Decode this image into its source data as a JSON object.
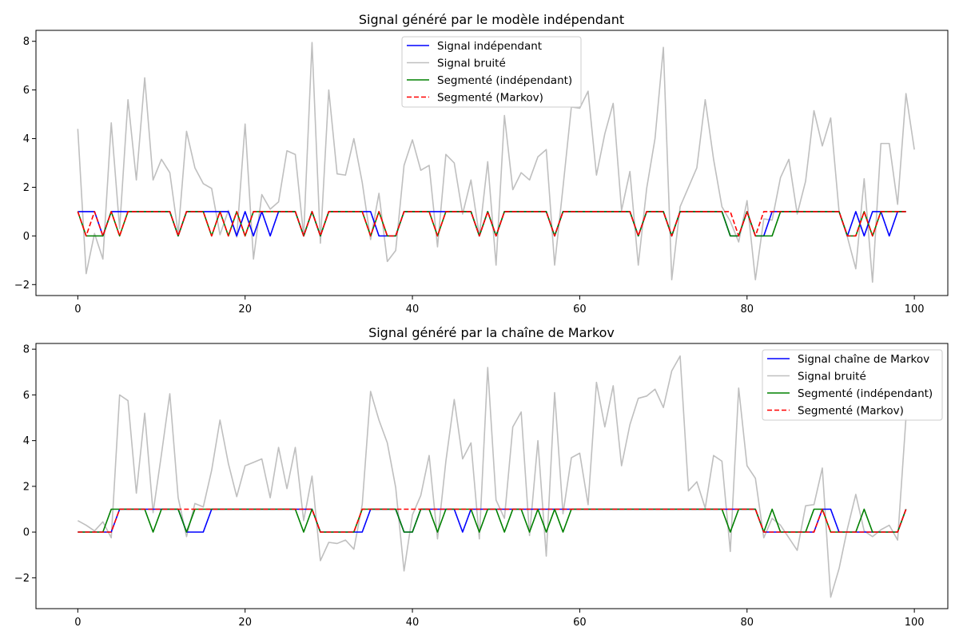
{
  "chart_data": [
    {
      "type": "line",
      "title": "Signal généré par le modèle indépendant",
      "xlim": [
        -5,
        104
      ],
      "ylim": [
        -2.45,
        8.45
      ],
      "xticks": [
        0,
        20,
        40,
        60,
        80,
        100
      ],
      "yticks": [
        -2,
        0,
        2,
        4,
        6,
        8
      ],
      "grid": false,
      "legend_position": "top-center",
      "series": [
        {
          "name": "Signal bruité",
          "color": "#bfbfbf",
          "dash": "solid",
          "values": [
            4.4,
            -1.55,
            0.1,
            -0.95,
            4.65,
            0.3,
            5.6,
            2.3,
            6.5,
            2.3,
            3.15,
            2.6,
            0.1,
            4.3,
            2.8,
            2.15,
            1.95,
            0.05,
            1.05,
            -0.05,
            4.6,
            -0.95,
            1.7,
            1.1,
            1.4,
            3.5,
            3.35,
            0.0,
            7.95,
            -0.3,
            6.0,
            2.55,
            2.5,
            4.0,
            2.2,
            -0.15,
            1.75,
            -1.05,
            -0.6,
            2.9,
            3.95,
            2.7,
            2.9,
            -0.45,
            3.35,
            3.0,
            0.9,
            2.3,
            0.0,
            3.05,
            -1.2,
            4.95,
            1.9,
            2.6,
            2.3,
            3.25,
            3.55,
            -1.2,
            2.0,
            5.3,
            5.25,
            5.95,
            2.5,
            4.2,
            5.45,
            1.05,
            2.65,
            -1.2,
            1.95,
            4.0,
            7.75,
            -1.8,
            1.2,
            2.0,
            2.8,
            5.6,
            3.15,
            1.2,
            0.6,
            -0.25,
            1.45,
            -1.8,
            0.7,
            0.65,
            2.4,
            3.15,
            0.9,
            2.25,
            5.15,
            3.7,
            4.85,
            1.0,
            -0.05,
            -1.35,
            2.35,
            -1.9,
            3.8,
            3.8,
            1.3,
            5.85,
            3.55
          ]
        },
        {
          "name": "Signal indépendant",
          "color": "#0000ff",
          "dash": "solid",
          "values": [
            1,
            1,
            1,
            0,
            1,
            1,
            1,
            1,
            1,
            1,
            1,
            1,
            0,
            1,
            1,
            1,
            1,
            1,
            1,
            0,
            1,
            0,
            1,
            0,
            1,
            1,
            1,
            0,
            1,
            0,
            1,
            1,
            1,
            1,
            1,
            1,
            0,
            0,
            0,
            1,
            1,
            1,
            1,
            1,
            1,
            1,
            1,
            1,
            0,
            1,
            0,
            1,
            1,
            1,
            1,
            1,
            1,
            0,
            1,
            1,
            1,
            1,
            1,
            1,
            1,
            1,
            1,
            0,
            1,
            1,
            1,
            0,
            1,
            1,
            1,
            1,
            1,
            1,
            0,
            0,
            1,
            0,
            0,
            1,
            1,
            1,
            1,
            1,
            1,
            1,
            1,
            1,
            0,
            1,
            0,
            1,
            1,
            0,
            1,
            1
          ]
        },
        {
          "name": "Segmenté (indépendant)",
          "color": "#008000",
          "dash": "solid",
          "values": [
            1,
            0,
            0,
            0,
            1,
            0,
            1,
            1,
            1,
            1,
            1,
            1,
            0,
            1,
            1,
            1,
            0,
            1,
            0,
            1,
            0,
            1,
            1,
            1,
            1,
            1,
            1,
            0,
            1,
            0,
            1,
            1,
            1,
            1,
            1,
            0,
            1,
            0,
            0,
            1,
            1,
            1,
            1,
            0,
            1,
            1,
            1,
            1,
            0,
            1,
            0,
            1,
            1,
            1,
            1,
            1,
            1,
            0,
            1,
            1,
            1,
            1,
            1,
            1,
            1,
            1,
            1,
            0,
            1,
            1,
            1,
            0,
            1,
            1,
            1,
            1,
            1,
            1,
            0,
            0,
            1,
            0,
            0,
            0,
            1,
            1,
            1,
            1,
            1,
            1,
            1,
            1,
            0,
            0,
            1,
            0,
            1,
            1,
            1,
            1
          ]
        },
        {
          "name": "Segmenté (Markov)",
          "color": "#ff0000",
          "dash": "dashed",
          "values": [
            1,
            0,
            1,
            0,
            1,
            0,
            1,
            1,
            1,
            1,
            1,
            1,
            0,
            1,
            1,
            1,
            0,
            1,
            0,
            1,
            0,
            1,
            1,
            1,
            1,
            1,
            1,
            0,
            1,
            0,
            1,
            1,
            1,
            1,
            1,
            0,
            1,
            0,
            0,
            1,
            1,
            1,
            1,
            0,
            1,
            1,
            1,
            1,
            0,
            1,
            0,
            1,
            1,
            1,
            1,
            1,
            1,
            0,
            1,
            1,
            1,
            1,
            1,
            1,
            1,
            1,
            1,
            0,
            1,
            1,
            1,
            0,
            1,
            1,
            1,
            1,
            1,
            1,
            1,
            0,
            1,
            0,
            1,
            1,
            1,
            1,
            1,
            1,
            1,
            1,
            1,
            1,
            0,
            0,
            1,
            0,
            1,
            1,
            1,
            1
          ]
        }
      ],
      "legend_order": [
        "Signal indépendant",
        "Signal bruité",
        "Segmenté (indépendant)",
        "Segmenté (Markov)"
      ]
    },
    {
      "type": "line",
      "title": "Signal généré par la chaîne de Markov",
      "xlim": [
        -5,
        104
      ],
      "ylim": [
        -3.35,
        8.25
      ],
      "xticks": [
        0,
        20,
        40,
        60,
        80,
        100
      ],
      "yticks": [
        -2,
        0,
        2,
        4,
        6,
        8
      ],
      "grid": false,
      "legend_position": "top-right",
      "series": [
        {
          "name": "Signal bruité",
          "color": "#bfbfbf",
          "dash": "solid",
          "values": [
            0.5,
            0.3,
            0.05,
            0.45,
            -0.25,
            6.0,
            5.75,
            1.7,
            5.2,
            0.85,
            3.4,
            6.05,
            1.5,
            -0.2,
            1.25,
            1.1,
            2.7,
            4.9,
            3.0,
            1.55,
            2.9,
            3.05,
            3.2,
            1.5,
            3.7,
            1.9,
            3.7,
            0.5,
            2.45,
            -1.25,
            -0.45,
            -0.5,
            -0.35,
            -0.75,
            1.2,
            6.15,
            4.9,
            3.9,
            1.95,
            -1.7,
            0.75,
            1.6,
            3.35,
            -0.3,
            3.1,
            5.8,
            3.2,
            3.9,
            -0.3,
            7.2,
            1.4,
            0.6,
            4.6,
            5.25,
            -0.15,
            4.0,
            -1.05,
            6.1,
            0.8,
            3.25,
            3.45,
            1.2,
            6.55,
            4.6,
            6.4,
            2.9,
            4.7,
            5.85,
            5.95,
            6.25,
            5.45,
            7.05,
            7.7,
            1.8,
            2.2,
            1.05,
            3.35,
            3.1,
            -0.85,
            6.3,
            2.9,
            2.35,
            -0.25,
            0.6,
            0.3,
            -0.25,
            -0.8,
            1.15,
            1.2,
            2.8,
            -2.85,
            -1.6,
            0.15,
            1.65,
            0.05,
            -0.2,
            0.1,
            0.3,
            -0.35,
            5.0
          ]
        },
        {
          "name": "Signal chaîne de Markov",
          "color": "#0000ff",
          "dash": "solid",
          "values": [
            0,
            0,
            0,
            0,
            0,
            1,
            1,
            1,
            1,
            1,
            1,
            1,
            1,
            0,
            0,
            0,
            1,
            1,
            1,
            1,
            1,
            1,
            1,
            1,
            1,
            1,
            1,
            1,
            1,
            0,
            0,
            0,
            0,
            0,
            0,
            1,
            1,
            1,
            1,
            0,
            0,
            1,
            1,
            1,
            1,
            1,
            0,
            1,
            1,
            1,
            1,
            1,
            1,
            1,
            1,
            1,
            1,
            1,
            1,
            1,
            1,
            1,
            1,
            1,
            1,
            1,
            1,
            1,
            1,
            1,
            1,
            1,
            1,
            1,
            1,
            1,
            1,
            1,
            1,
            1,
            1,
            1,
            0,
            0,
            0,
            0,
            0,
            0,
            0,
            1,
            1,
            0,
            0,
            0,
            0,
            0,
            0,
            0,
            0,
            1
          ]
        },
        {
          "name": "Segmenté (indépendant)",
          "color": "#008000",
          "dash": "solid",
          "values": [
            0,
            0,
            0,
            0,
            1,
            1,
            1,
            1,
            1,
            0,
            1,
            1,
            1,
            0,
            1,
            1,
            1,
            1,
            1,
            1,
            1,
            1,
            1,
            1,
            1,
            1,
            1,
            0,
            1,
            0,
            0,
            0,
            0,
            0,
            1,
            1,
            1,
            1,
            1,
            0,
            0,
            1,
            1,
            0,
            1,
            1,
            1,
            1,
            0,
            1,
            1,
            0,
            1,
            1,
            0,
            1,
            0,
            1,
            0,
            1,
            1,
            1,
            1,
            1,
            1,
            1,
            1,
            1,
            1,
            1,
            1,
            1,
            1,
            1,
            1,
            1,
            1,
            1,
            0,
            1,
            1,
            1,
            0,
            1,
            0,
            0,
            0,
            0,
            1,
            1,
            0,
            0,
            0,
            0,
            1,
            0,
            0,
            0,
            0,
            1
          ]
        },
        {
          "name": "Segmenté (Markov)",
          "color": "#ff0000",
          "dash": "dashed",
          "values": [
            0,
            0,
            0,
            0,
            0,
            1,
            1,
            1,
            1,
            1,
            1,
            1,
            1,
            1,
            1,
            1,
            1,
            1,
            1,
            1,
            1,
            1,
            1,
            1,
            1,
            1,
            1,
            1,
            1,
            0,
            0,
            0,
            0,
            0,
            1,
            1,
            1,
            1,
            1,
            1,
            1,
            1,
            1,
            1,
            1,
            1,
            1,
            1,
            1,
            1,
            1,
            1,
            1,
            1,
            1,
            1,
            1,
            1,
            1,
            1,
            1,
            1,
            1,
            1,
            1,
            1,
            1,
            1,
            1,
            1,
            1,
            1,
            1,
            1,
            1,
            1,
            1,
            1,
            1,
            1,
            1,
            1,
            0,
            0,
            0,
            0,
            0,
            0,
            0,
            1,
            0,
            0,
            0,
            0,
            0,
            0,
            0,
            0,
            0,
            1
          ]
        }
      ],
      "legend_order": [
        "Signal chaîne de Markov",
        "Signal bruité",
        "Segmenté (indépendant)",
        "Segmenté (Markov)"
      ]
    }
  ]
}
